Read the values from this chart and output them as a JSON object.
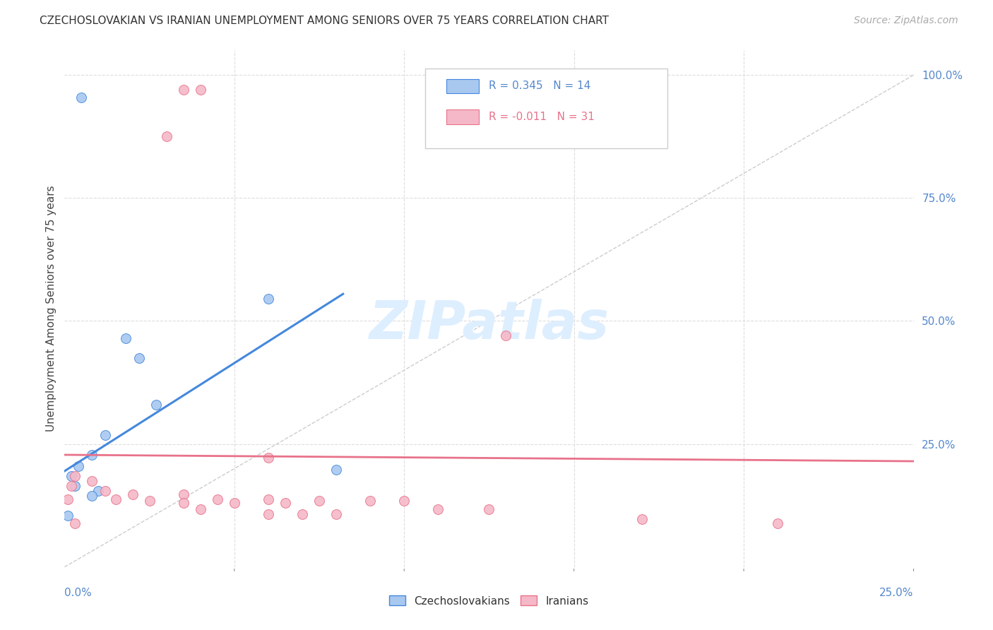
{
  "title": "CZECHOSLOVAKIAN VS IRANIAN UNEMPLOYMENT AMONG SENIORS OVER 75 YEARS CORRELATION CHART",
  "source": "Source: ZipAtlas.com",
  "ylabel": "Unemployment Among Seniors over 75 years",
  "right_yticks": [
    "100.0%",
    "75.0%",
    "50.0%",
    "25.0%"
  ],
  "right_ytick_vals": [
    1.0,
    0.75,
    0.5,
    0.25
  ],
  "xlim": [
    0.0,
    0.25
  ],
  "ylim": [
    0.0,
    1.05
  ],
  "legend_r1": "R = 0.345",
  "legend_n1": "N = 14",
  "legend_r2": "R = -0.011",
  "legend_n2": "N = 31",
  "color_czech": "#A8C8F0",
  "color_iran": "#F5B8C8",
  "color_czech_line": "#4488DD",
  "color_iran_line": "#E8728A",
  "color_diag": "#CCCCCC",
  "watermark": "ZIPatlas",
  "czech_points": [
    [
      0.005,
      0.955
    ],
    [
      0.06,
      0.545
    ],
    [
      0.018,
      0.465
    ],
    [
      0.022,
      0.425
    ],
    [
      0.027,
      0.33
    ],
    [
      0.012,
      0.268
    ],
    [
      0.008,
      0.228
    ],
    [
      0.004,
      0.205
    ],
    [
      0.002,
      0.185
    ],
    [
      0.003,
      0.165
    ],
    [
      0.01,
      0.155
    ],
    [
      0.008,
      0.145
    ],
    [
      0.08,
      0.198
    ],
    [
      0.001,
      0.105
    ]
  ],
  "iran_points": [
    [
      0.035,
      0.97
    ],
    [
      0.04,
      0.97
    ],
    [
      0.03,
      0.875
    ],
    [
      0.13,
      0.47
    ],
    [
      0.06,
      0.222
    ],
    [
      0.003,
      0.185
    ],
    [
      0.008,
      0.175
    ],
    [
      0.002,
      0.165
    ],
    [
      0.012,
      0.155
    ],
    [
      0.02,
      0.148
    ],
    [
      0.035,
      0.148
    ],
    [
      0.001,
      0.138
    ],
    [
      0.015,
      0.138
    ],
    [
      0.025,
      0.135
    ],
    [
      0.045,
      0.138
    ],
    [
      0.06,
      0.138
    ],
    [
      0.035,
      0.13
    ],
    [
      0.05,
      0.13
    ],
    [
      0.065,
      0.13
    ],
    [
      0.075,
      0.135
    ],
    [
      0.09,
      0.135
    ],
    [
      0.1,
      0.135
    ],
    [
      0.04,
      0.118
    ],
    [
      0.11,
      0.118
    ],
    [
      0.125,
      0.118
    ],
    [
      0.06,
      0.108
    ],
    [
      0.07,
      0.108
    ],
    [
      0.08,
      0.108
    ],
    [
      0.17,
      0.098
    ],
    [
      0.21,
      0.088
    ],
    [
      0.003,
      0.088
    ]
  ],
  "cz_line_x": [
    0.0,
    0.082
  ],
  "cz_line_y": [
    0.195,
    0.555
  ],
  "ir_line_x": [
    0.0,
    0.25
  ],
  "ir_line_y": [
    0.228,
    0.215
  ]
}
